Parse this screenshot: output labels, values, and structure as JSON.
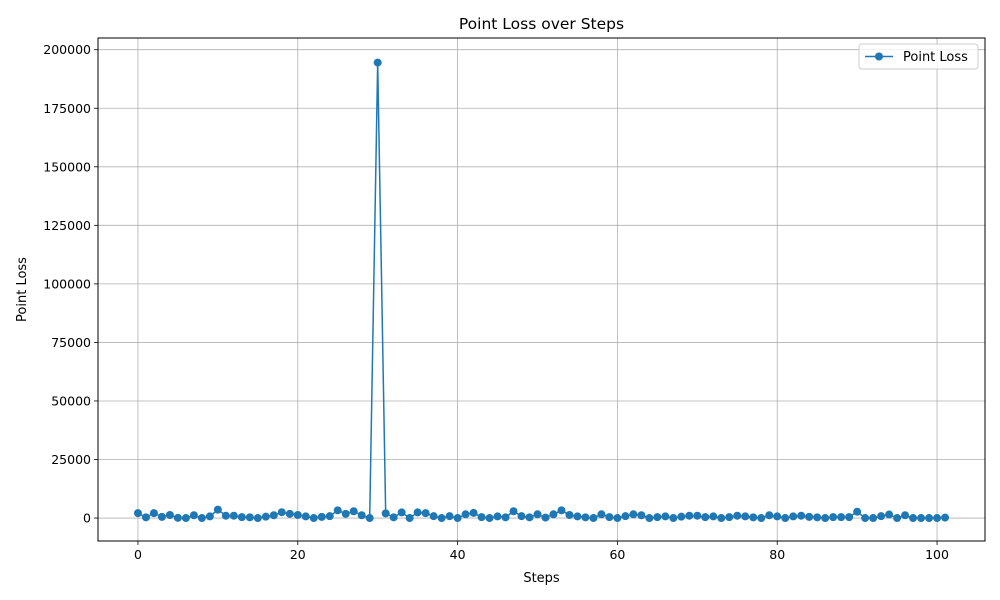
{
  "chart_data": {
    "type": "line",
    "title": "Point Loss over Steps",
    "xlabel": "Steps",
    "ylabel": "Point Loss",
    "xlim": [
      -5,
      106
    ],
    "ylim": [
      -9800,
      205000
    ],
    "xticks": [
      0,
      20,
      40,
      60,
      80,
      100
    ],
    "yticks": [
      0,
      25000,
      50000,
      75000,
      100000,
      125000,
      150000,
      175000,
      200000
    ],
    "grid": true,
    "legend_position": "top-right",
    "series": [
      {
        "name": "Point Loss",
        "color": "#1f77b4",
        "marker": "circle",
        "x": [
          0,
          1,
          2,
          3,
          4,
          5,
          6,
          7,
          8,
          9,
          10,
          11,
          12,
          13,
          14,
          15,
          16,
          17,
          18,
          19,
          20,
          21,
          22,
          23,
          24,
          25,
          26,
          27,
          28,
          29,
          30,
          31,
          32,
          33,
          34,
          35,
          36,
          37,
          38,
          39,
          40,
          41,
          42,
          43,
          44,
          45,
          46,
          47,
          48,
          49,
          50,
          51,
          52,
          53,
          54,
          55,
          56,
          57,
          58,
          59,
          60,
          61,
          62,
          63,
          64,
          65,
          66,
          67,
          68,
          69,
          70,
          71,
          72,
          73,
          74,
          75,
          76,
          77,
          78,
          79,
          80,
          81,
          82,
          83,
          84,
          85,
          86,
          87,
          88,
          89,
          90,
          91,
          92,
          93,
          94,
          95,
          96,
          97,
          98,
          99,
          100,
          101
        ],
        "y": [
          2100,
          300,
          2100,
          500,
          1300,
          100,
          0,
          1200,
          0,
          700,
          3600,
          1000,
          1000,
          400,
          300,
          0,
          600,
          1200,
          2500,
          1800,
          1300,
          700,
          0,
          500,
          800,
          3300,
          1800,
          2900,
          1200,
          0,
          194500,
          2000,
          300,
          2400,
          0,
          2400,
          2100,
          800,
          0,
          800,
          0,
          1600,
          2200,
          400,
          0,
          700,
          300,
          2900,
          800,
          300,
          1600,
          200,
          1600,
          3300,
          1300,
          700,
          300,
          0,
          1600,
          400,
          0,
          800,
          1600,
          1200,
          0,
          400,
          700,
          0,
          600,
          1000,
          1000,
          400,
          700,
          0,
          400,
          1000,
          700,
          300,
          0,
          1200,
          700,
          0,
          700,
          1000,
          500,
          300,
          0,
          400,
          400,
          400,
          2700,
          0,
          0,
          800,
          1500,
          0,
          1200,
          0,
          0,
          0,
          0,
          200
        ]
      }
    ]
  }
}
